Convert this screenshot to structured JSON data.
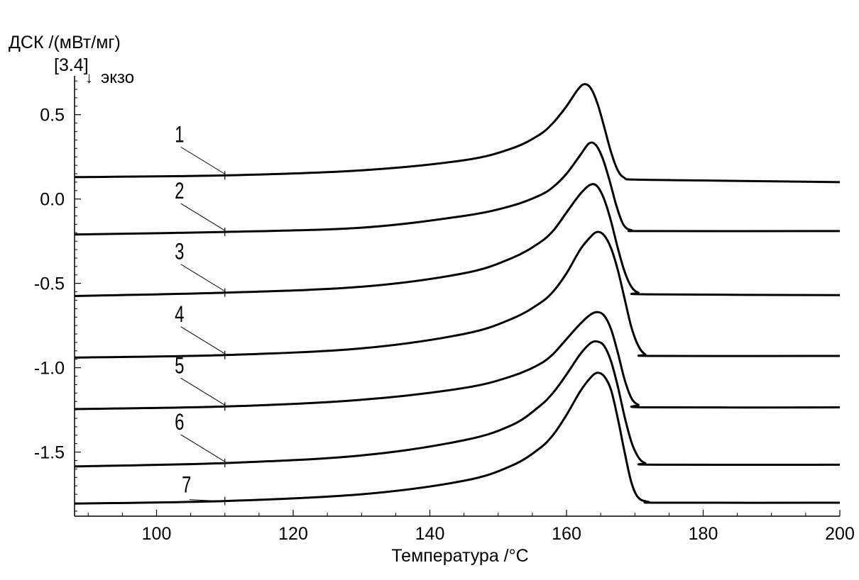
{
  "chart_data": {
    "type": "line",
    "ylabel": "ДСК /(мВт/мг)",
    "ylabel_sub": "[3.4]",
    "exo_label": "экзо",
    "xlabel": "Температура /°C",
    "xlim": [
      88,
      200
    ],
    "ylim": [
      -1.88,
      0.73
    ],
    "xticks": [
      100,
      120,
      140,
      160,
      180,
      200
    ],
    "xtick_labels": [
      "100",
      "120",
      "140",
      "160",
      "180",
      "200"
    ],
    "yticks": [
      0.5,
      0.0,
      -0.5,
      -1.0,
      -1.5
    ],
    "ytick_labels": [
      "0.5",
      "0.0",
      "-0.5",
      "-1.0",
      "-1.5"
    ],
    "grid": false,
    "curve_label_x": 110,
    "series": [
      {
        "name": "1",
        "points": [
          [
            88,
            0.13
          ],
          [
            110,
            0.14
          ],
          [
            130,
            0.17
          ],
          [
            145,
            0.23
          ],
          [
            152,
            0.3
          ],
          [
            156,
            0.38
          ],
          [
            158,
            0.45
          ],
          [
            160,
            0.55
          ],
          [
            161.5,
            0.64
          ],
          [
            162.5,
            0.68
          ],
          [
            163.5,
            0.66
          ],
          [
            164.5,
            0.57
          ],
          [
            165.5,
            0.43
          ],
          [
            166.5,
            0.28
          ],
          [
            167.5,
            0.17
          ],
          [
            168.5,
            0.125
          ],
          [
            170,
            0.115
          ],
          [
            180,
            0.11
          ],
          [
            200,
            0.1
          ]
        ]
      },
      {
        "name": "2",
        "points": [
          [
            88,
            -0.21
          ],
          [
            110,
            -0.195
          ],
          [
            130,
            -0.17
          ],
          [
            145,
            -0.1
          ],
          [
            152,
            -0.04
          ],
          [
            156,
            0.02
          ],
          [
            158,
            0.07
          ],
          [
            160,
            0.15
          ],
          [
            162,
            0.26
          ],
          [
            163.3,
            0.33
          ],
          [
            164.3,
            0.32
          ],
          [
            165.3,
            0.24
          ],
          [
            166.3,
            0.11
          ],
          [
            167.3,
            -0.04
          ],
          [
            168.3,
            -0.15
          ],
          [
            169.5,
            -0.185
          ],
          [
            172,
            -0.19
          ],
          [
            200,
            -0.19
          ]
        ]
      },
      {
        "name": "3",
        "points": [
          [
            88,
            -0.575
          ],
          [
            110,
            -0.555
          ],
          [
            130,
            -0.52
          ],
          [
            145,
            -0.44
          ],
          [
            152,
            -0.35
          ],
          [
            156,
            -0.26
          ],
          [
            158,
            -0.19
          ],
          [
            160,
            -0.08
          ],
          [
            162,
            0.03
          ],
          [
            163.5,
            0.085
          ],
          [
            164.5,
            0.075
          ],
          [
            165.5,
            0.0
          ],
          [
            166.5,
            -0.13
          ],
          [
            167.5,
            -0.29
          ],
          [
            168.5,
            -0.43
          ],
          [
            169.5,
            -0.52
          ],
          [
            170.5,
            -0.555
          ],
          [
            172,
            -0.565
          ],
          [
            200,
            -0.57
          ]
        ]
      },
      {
        "name": "4",
        "points": [
          [
            88,
            -0.94
          ],
          [
            110,
            -0.925
          ],
          [
            130,
            -0.885
          ],
          [
            145,
            -0.8
          ],
          [
            152,
            -0.71
          ],
          [
            156,
            -0.62
          ],
          [
            158,
            -0.55
          ],
          [
            160,
            -0.44
          ],
          [
            162,
            -0.3
          ],
          [
            163.5,
            -0.225
          ],
          [
            164.5,
            -0.195
          ],
          [
            165.5,
            -0.215
          ],
          [
            166.5,
            -0.29
          ],
          [
            167.5,
            -0.42
          ],
          [
            168.5,
            -0.59
          ],
          [
            169.5,
            -0.76
          ],
          [
            170.5,
            -0.87
          ],
          [
            171.5,
            -0.92
          ],
          [
            173,
            -0.93
          ],
          [
            200,
            -0.93
          ]
        ]
      },
      {
        "name": "5",
        "points": [
          [
            88,
            -1.245
          ],
          [
            110,
            -1.23
          ],
          [
            130,
            -1.19
          ],
          [
            145,
            -1.12
          ],
          [
            152,
            -1.05
          ],
          [
            156,
            -0.98
          ],
          [
            158,
            -0.92
          ],
          [
            160,
            -0.83
          ],
          [
            162,
            -0.74
          ],
          [
            163.5,
            -0.685
          ],
          [
            164.5,
            -0.67
          ],
          [
            165.5,
            -0.69
          ],
          [
            166.5,
            -0.77
          ],
          [
            167.5,
            -0.91
          ],
          [
            168.5,
            -1.07
          ],
          [
            169.5,
            -1.18
          ],
          [
            170.5,
            -1.22
          ],
          [
            172,
            -1.235
          ],
          [
            200,
            -1.235
          ]
        ]
      },
      {
        "name": "6",
        "points": [
          [
            88,
            -1.585
          ],
          [
            110,
            -1.565
          ],
          [
            130,
            -1.52
          ],
          [
            145,
            -1.43
          ],
          [
            152,
            -1.34
          ],
          [
            156,
            -1.23
          ],
          [
            158,
            -1.15
          ],
          [
            160,
            -1.04
          ],
          [
            162,
            -0.92
          ],
          [
            163.5,
            -0.855
          ],
          [
            164.5,
            -0.845
          ],
          [
            165.5,
            -0.87
          ],
          [
            166.5,
            -0.96
          ],
          [
            167.5,
            -1.11
          ],
          [
            168.5,
            -1.29
          ],
          [
            169.5,
            -1.44
          ],
          [
            170.5,
            -1.53
          ],
          [
            171.5,
            -1.565
          ],
          [
            173,
            -1.575
          ],
          [
            200,
            -1.575
          ]
        ]
      },
      {
        "name": "7",
        "points": [
          [
            88,
            -1.805
          ],
          [
            110,
            -1.79
          ],
          [
            130,
            -1.75
          ],
          [
            145,
            -1.67
          ],
          [
            152,
            -1.58
          ],
          [
            156,
            -1.48
          ],
          [
            158,
            -1.4
          ],
          [
            160,
            -1.28
          ],
          [
            162,
            -1.14
          ],
          [
            163.5,
            -1.06
          ],
          [
            164.5,
            -1.03
          ],
          [
            165.5,
            -1.05
          ],
          [
            166.5,
            -1.13
          ],
          [
            167.5,
            -1.3
          ],
          [
            168.5,
            -1.5
          ],
          [
            169.5,
            -1.68
          ],
          [
            170.5,
            -1.77
          ],
          [
            172,
            -1.795
          ],
          [
            174,
            -1.8
          ],
          [
            200,
            -1.8
          ]
        ]
      }
    ]
  }
}
